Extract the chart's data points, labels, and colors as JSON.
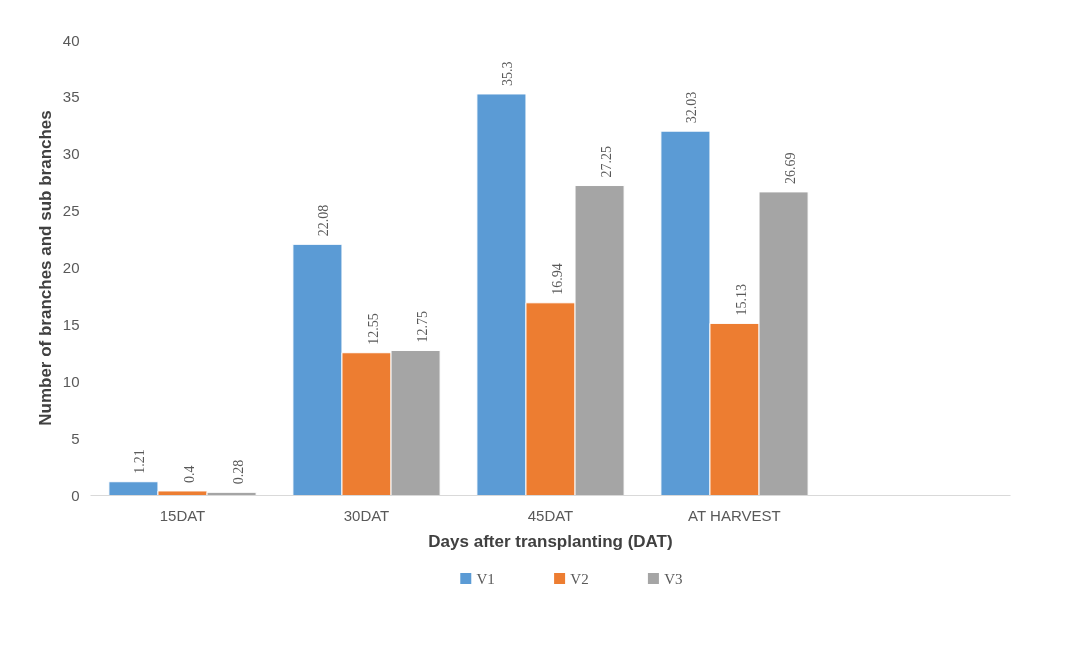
{
  "chart_data": {
    "type": "bar",
    "xlabel": "Days after transplanting (DAT)",
    "ylabel": "Number of branches and sub branches",
    "categories": [
      "15DAT",
      "30DAT",
      "45DAT",
      "AT HARVEST",
      null
    ],
    "series": [
      {
        "name": "V1",
        "color": "#5b9bd5",
        "values": [
          1.21,
          22.08,
          35.3,
          32.03,
          null
        ]
      },
      {
        "name": "V2",
        "color": "#ed7d31",
        "values": [
          0.4,
          12.55,
          16.94,
          15.13,
          null
        ]
      },
      {
        "name": "V3",
        "color": "#a5a5a5",
        "values": [
          0.28,
          12.75,
          27.25,
          26.69,
          null
        ]
      }
    ],
    "ylim": [
      0,
      40
    ],
    "yticks": [
      0,
      5,
      10,
      15,
      20,
      25,
      30,
      35,
      40
    ],
    "grid": false,
    "legend": "bottom",
    "data_labels": true
  }
}
